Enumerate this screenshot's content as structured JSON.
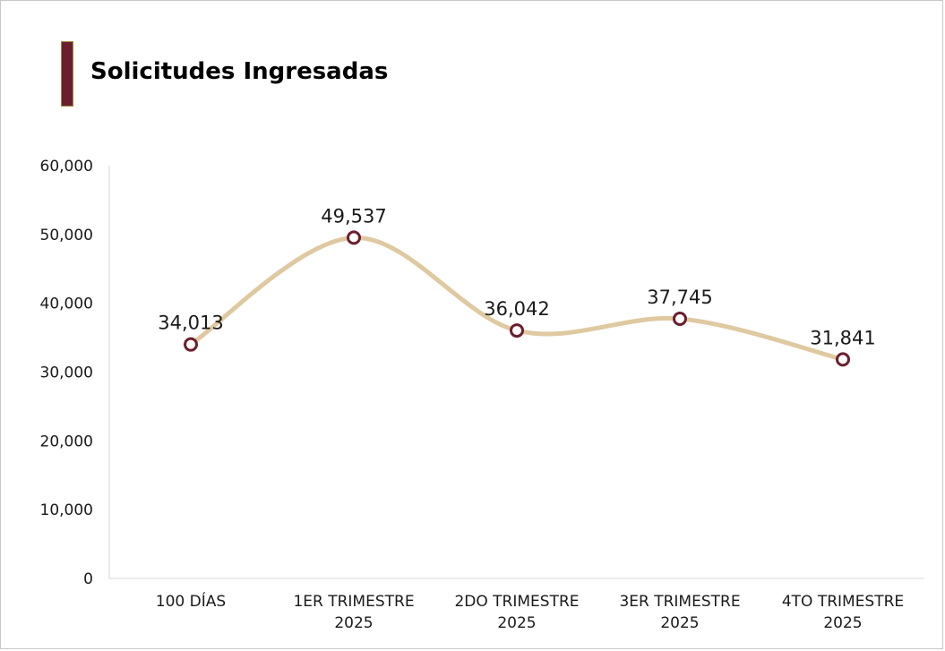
{
  "title": "Solicitudes Ingresadas",
  "colors": {
    "line": "#dfc9a1",
    "marker": "#6b1f2e",
    "accent_bar": "#6b1f2e",
    "text": "#1a1a1a",
    "axis": "#d9d9d9"
  },
  "chart_data": {
    "type": "line",
    "title": "Solicitudes Ingresadas",
    "xlabel": "",
    "ylabel": "",
    "categories": [
      [
        "100 DÍAS"
      ],
      [
        "1ER TRIMESTRE",
        "2025"
      ],
      [
        "2DO TRIMESTRE",
        "2025"
      ],
      [
        "3ER TRIMESTRE",
        "2025"
      ],
      [
        "4TO TRIMESTRE",
        "2025"
      ]
    ],
    "values": [
      34013,
      49537,
      36042,
      37745,
      31841
    ],
    "data_labels": [
      "34,013",
      "49,537",
      "36,042",
      "37,745",
      "31,841"
    ],
    "ylim": [
      0,
      60000
    ],
    "y_ticks": [
      0,
      10000,
      20000,
      30000,
      40000,
      50000,
      60000
    ],
    "y_tick_labels": [
      "0",
      "10,000",
      "20,000",
      "30,000",
      "40,000",
      "50,000",
      "60,000"
    ],
    "smooth": true,
    "grid": false,
    "legend": "none"
  }
}
